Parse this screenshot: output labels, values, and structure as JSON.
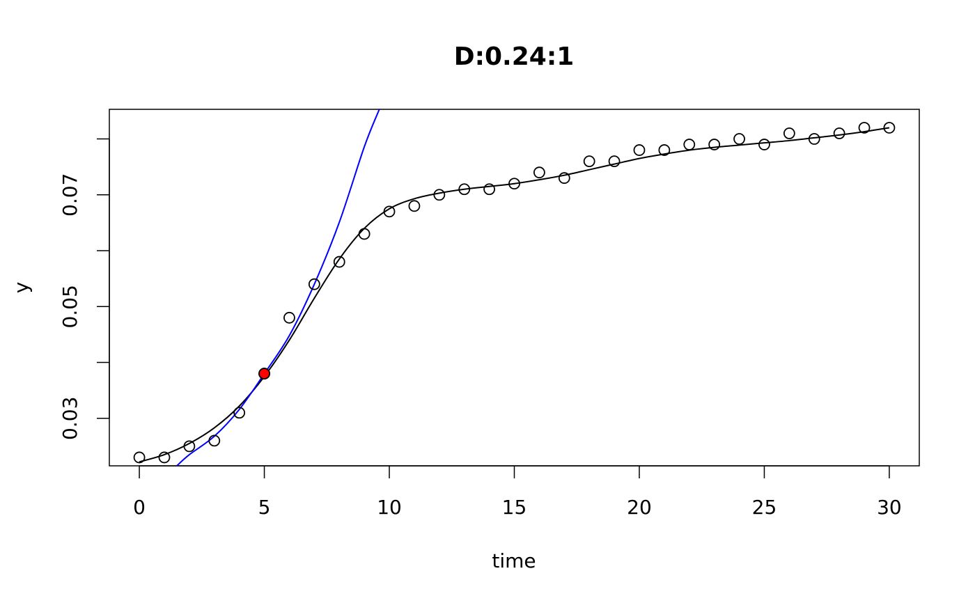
{
  "chart_data": {
    "type": "scatter",
    "title": "D:0.24:1",
    "xlabel": "time",
    "ylabel": "y",
    "xlim": [
      -1.2,
      31.2
    ],
    "ylim": [
      0.0215,
      0.0853
    ],
    "x_ticks": [
      0,
      5,
      10,
      15,
      20,
      25,
      30
    ],
    "x_tick_labels": [
      "0",
      "5",
      "10",
      "15",
      "20",
      "25",
      "30"
    ],
    "y_ticks": [
      0.03,
      0.04,
      0.05,
      0.06,
      0.07,
      0.08
    ],
    "y_tick_labels": [
      "0.03",
      "",
      "0.05",
      "",
      "0.07",
      ""
    ],
    "grid": false,
    "legend": "none",
    "series": [
      {
        "kind": "points",
        "marker": "open-circle",
        "color": "#000000",
        "x": [
          0,
          1,
          2,
          3,
          4,
          5,
          6,
          7,
          8,
          9,
          10,
          11,
          12,
          13,
          14,
          15,
          16,
          17,
          18,
          19,
          20,
          21,
          22,
          23,
          24,
          25,
          26,
          27,
          28,
          29,
          30
        ],
        "y": [
          0.023,
          0.023,
          0.025,
          0.026,
          0.031,
          0.038,
          0.048,
          0.054,
          0.058,
          0.063,
          0.067,
          0.068,
          0.07,
          0.071,
          0.071,
          0.072,
          0.074,
          0.073,
          0.076,
          0.076,
          0.078,
          0.078,
          0.079,
          0.079,
          0.08,
          0.079,
          0.081,
          0.08,
          0.081,
          0.082,
          0.082
        ]
      },
      {
        "kind": "smooth-line",
        "color": "#000000",
        "x": [
          0,
          1,
          2,
          3,
          4,
          5,
          6,
          7,
          8,
          9,
          10,
          11,
          12,
          13,
          14,
          15,
          16,
          17,
          18,
          19,
          20,
          21,
          22,
          23,
          24,
          25,
          26,
          27,
          28,
          29,
          30
        ],
        "y": [
          0.0222,
          0.0235,
          0.0255,
          0.0283,
          0.0322,
          0.0375,
          0.044,
          0.0515,
          0.0585,
          0.064,
          0.0675,
          0.0693,
          0.0703,
          0.071,
          0.0715,
          0.072,
          0.0727,
          0.0735,
          0.0745,
          0.0755,
          0.0765,
          0.0773,
          0.078,
          0.0785,
          0.0789,
          0.0793,
          0.0797,
          0.0802,
          0.0807,
          0.0813,
          0.082
        ]
      },
      {
        "kind": "exponential-fit-line",
        "color": "#0000ff",
        "x": [
          1.5,
          2,
          3,
          4,
          5,
          6,
          7,
          8,
          9,
          9.6
        ],
        "y": [
          0.0215,
          0.0235,
          0.0268,
          0.0316,
          0.038,
          0.0448,
          0.054,
          0.0651,
          0.0786,
          0.0853
        ]
      },
      {
        "kind": "highlight-point",
        "marker": "filled-circle",
        "color": "#ff0000",
        "x": [
          5
        ],
        "y": [
          0.038
        ]
      }
    ]
  }
}
